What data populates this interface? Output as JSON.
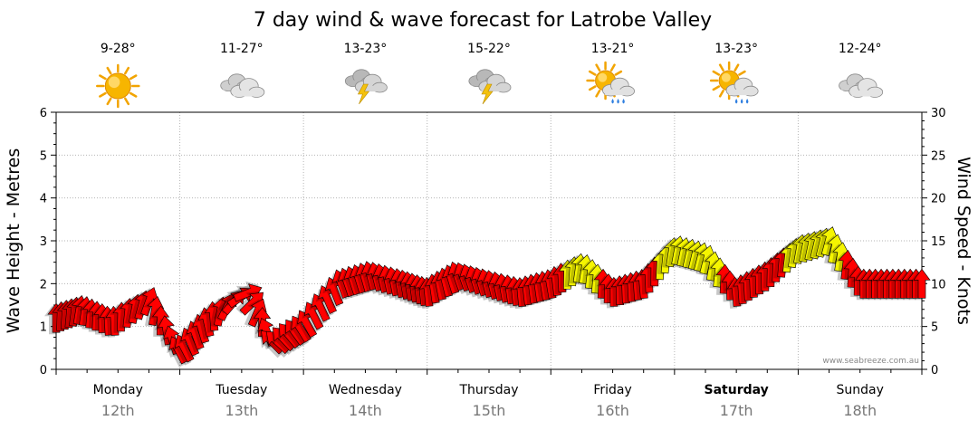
{
  "chart_data": {
    "type": "line",
    "title": "7 day wind & wave forecast for Latrobe Valley",
    "ylabel_left": "Wave Height - Metres",
    "ylabel_right": "Wind Speed - Knots",
    "ylim_left": [
      0,
      6
    ],
    "ylim_right": [
      0,
      30
    ],
    "yticks_left": [
      "0",
      "1",
      "2",
      "3",
      "4",
      "5",
      "6"
    ],
    "yticks_right": [
      "0",
      "5",
      "10",
      "15",
      "20",
      "25",
      "30"
    ],
    "credit": "www.seabreeze.com.au",
    "days": [
      {
        "name": "Monday",
        "date": "12th",
        "temp": "9-28°",
        "icon": "sunny-icon",
        "bold": false
      },
      {
        "name": "Tuesday",
        "date": "13th",
        "temp": "11-27°",
        "icon": "cloudy-icon",
        "bold": false
      },
      {
        "name": "Wednesday",
        "date": "14th",
        "temp": "13-23°",
        "icon": "thunderstorm-icon",
        "bold": false
      },
      {
        "name": "Thursday",
        "date": "15th",
        "temp": "15-22°",
        "icon": "thunderstorm-icon",
        "bold": false
      },
      {
        "name": "Friday",
        "date": "16th",
        "temp": "13-21°",
        "icon": "sun-shower-icon",
        "bold": false
      },
      {
        "name": "Saturday",
        "date": "17th",
        "temp": "13-23°",
        "icon": "sun-shower-icon",
        "bold": true
      },
      {
        "name": "Sunday",
        "date": "18th",
        "temp": "12-24°",
        "icon": "cloudy-icon",
        "bold": false
      }
    ],
    "series": [
      {
        "name": "Wind Speed",
        "unit": "knots",
        "x_days": [
          0.0,
          0.2,
          0.45,
          0.75,
          1.0,
          1.25,
          1.55,
          1.75,
          2.0,
          2.3,
          2.55,
          2.8,
          3.0,
          3.25,
          3.5,
          3.75,
          4.0,
          4.25,
          4.5,
          4.75,
          5.0,
          5.25,
          5.5,
          5.75,
          6.0,
          6.25,
          6.5,
          6.75,
          7.0
        ],
        "values": [
          6,
          7,
          5.5,
          8,
          2,
          6,
          9,
          3,
          5,
          10,
          11,
          10,
          9,
          11,
          10,
          9,
          10,
          12,
          9,
          10,
          14,
          13,
          9,
          11,
          14,
          15,
          10,
          10,
          10
        ],
        "direction_deg": [
          90,
          80,
          95,
          70,
          120,
          100,
          20,
          140,
          120,
          110,
          105,
          100,
          95,
          110,
          105,
          95,
          100,
          80,
          90,
          95,
          80,
          75,
          95,
          90,
          80,
          75,
          90,
          90,
          90
        ],
        "colors": [
          "red",
          "red",
          "red",
          "red",
          "red",
          "red",
          "red",
          "red",
          "red",
          "red",
          "red",
          "red",
          "red",
          "red",
          "red",
          "red",
          "red",
          "yellow",
          "red",
          "red",
          "yellow",
          "yellow",
          "red",
          "red",
          "yellow",
          "yellow",
          "red",
          "red",
          "red"
        ]
      }
    ]
  }
}
